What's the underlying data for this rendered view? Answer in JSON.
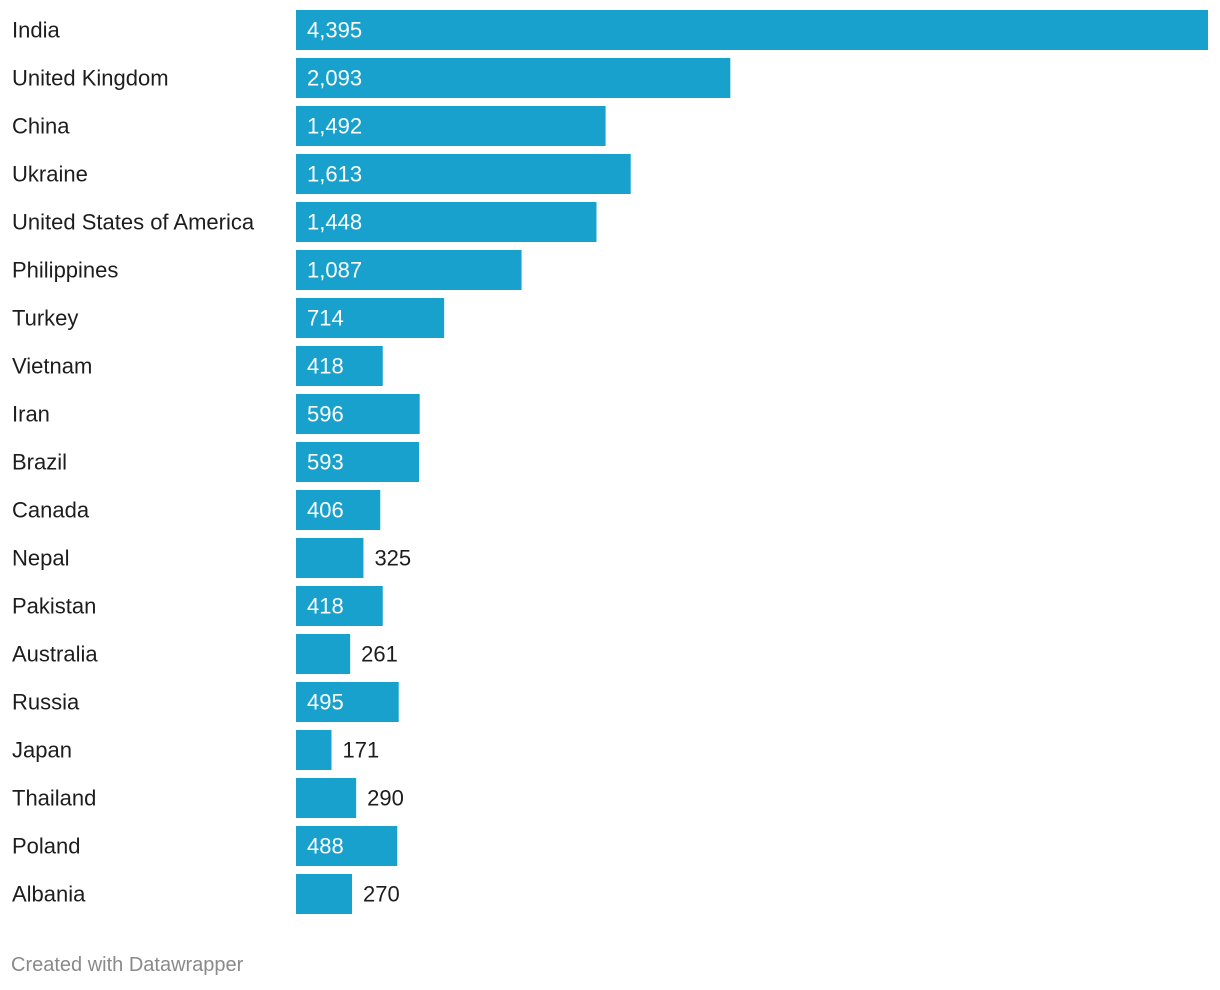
{
  "chart_data": {
    "type": "bar",
    "orientation": "horizontal",
    "title": "",
    "xlabel": "",
    "ylabel": "",
    "categories": [
      "India",
      "United Kingdom",
      "China",
      "Ukraine",
      "United States of America",
      "Philippines",
      "Turkey",
      "Vietnam",
      "Iran",
      "Brazil",
      "Canada",
      "Nepal",
      "Pakistan",
      "Australia",
      "Russia",
      "Japan",
      "Thailand",
      "Poland",
      "Albania"
    ],
    "values": [
      4395,
      2093,
      1492,
      1613,
      1448,
      1087,
      714,
      418,
      596,
      593,
      406,
      325,
      418,
      261,
      495,
      171,
      290,
      488,
      270
    ],
    "value_labels": [
      "4,395",
      "2,093",
      "1,492",
      "1,613",
      "1,448",
      "1,087",
      "714",
      "418",
      "596",
      "593",
      "406",
      "325",
      "418",
      "261",
      "495",
      "171",
      "290",
      "488",
      "270"
    ],
    "xlim": [
      0,
      4395
    ],
    "grid": false,
    "legend": "none",
    "bar_color": "#18a1cd"
  },
  "footer": {
    "credit": "Created with Datawrapper"
  }
}
